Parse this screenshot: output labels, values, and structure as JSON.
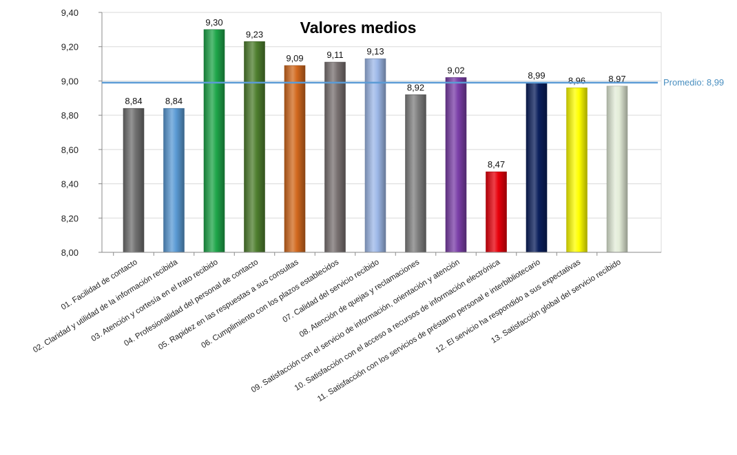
{
  "chart_data": {
    "type": "bar",
    "title": "Valores medios",
    "categories": [
      "01. Facilidad de contacto",
      "02. Claridad y utilidad de la información recibida",
      "03. Atención y cortesía en el trato recibido",
      "04. Profesionalidad del personal de contacto",
      "05. Rapidez en las respuestas a sus consultas",
      "06. Cumplimiento con los plazos establecidos",
      "07. Calidad del servicio recibido",
      "08. Atención de quejas y reclamaciones",
      "09. Satisfacción con el servicio de información, orientación y atención",
      "10. Satisfacción con el acceso a recursos de información electrónica",
      "11. Satisfacción con los servicios de préstamo personal e interbibliotecario",
      "12. El servicio ha respondido a sus expectativas",
      "13. Satisfacción global del servicio recibido"
    ],
    "values": [
      8.84,
      8.84,
      9.3,
      9.23,
      9.09,
      9.11,
      9.13,
      8.92,
      9.02,
      8.47,
      8.99,
      8.96,
      8.97
    ],
    "value_labels": [
      "8,84",
      "8,84",
      "9,30",
      "9,23",
      "9,09",
      "9,11",
      "9,13",
      "8,92",
      "9,02",
      "8,47",
      "8,99",
      "8,96",
      "8,97"
    ],
    "bar_colors": [
      "#707070",
      "#5b9bd5",
      "#1fa64a",
      "#4f7f2f",
      "#d2691e",
      "#7a7272",
      "#9db8e8",
      "#808080",
      "#7b3fa8",
      "#e8000b",
      "#0b1f5c",
      "#ffff00",
      "#e3ecd8"
    ],
    "ylim": [
      8.0,
      9.4
    ],
    "y_ticks": [
      8.0,
      8.2,
      8.4,
      8.6,
      8.8,
      9.0,
      9.2,
      9.4
    ],
    "y_tick_labels": [
      "8,00",
      "8,20",
      "8,40",
      "8,60",
      "8,80",
      "9,00",
      "9,20",
      "9,40"
    ],
    "average": {
      "value": 8.99,
      "label": "Promedio: 8,99",
      "color": "#5b9bd5"
    },
    "grid": true,
    "legend": "none",
    "xlabel": "",
    "ylabel": ""
  }
}
